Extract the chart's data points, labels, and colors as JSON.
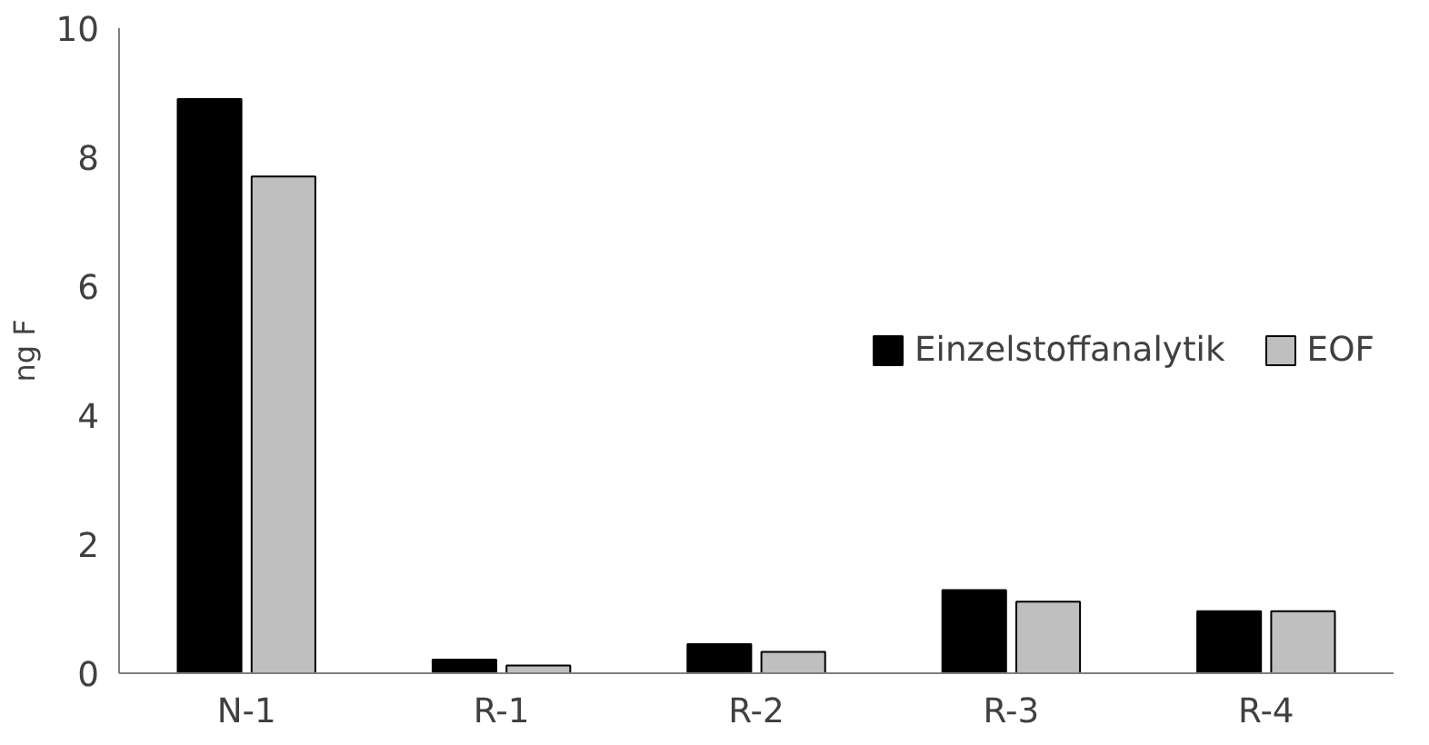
{
  "chart_data": {
    "type": "bar",
    "ylabel": "ng F",
    "categories": [
      "N-1",
      "R-1",
      "R-2",
      "R-3",
      "R-4"
    ],
    "series": [
      {
        "name": "Einzelstoffanalytik",
        "color": "#000000",
        "values": [
          8.9,
          0.21,
          0.45,
          1.29,
          0.96
        ]
      },
      {
        "name": "EOF",
        "color": "#bfbfbf",
        "values": [
          7.7,
          0.12,
          0.33,
          1.11,
          0.96
        ]
      }
    ],
    "ylim": [
      0,
      10
    ],
    "yticks": [
      0,
      2,
      4,
      6,
      8,
      10
    ],
    "grid": false,
    "legend": "right"
  }
}
